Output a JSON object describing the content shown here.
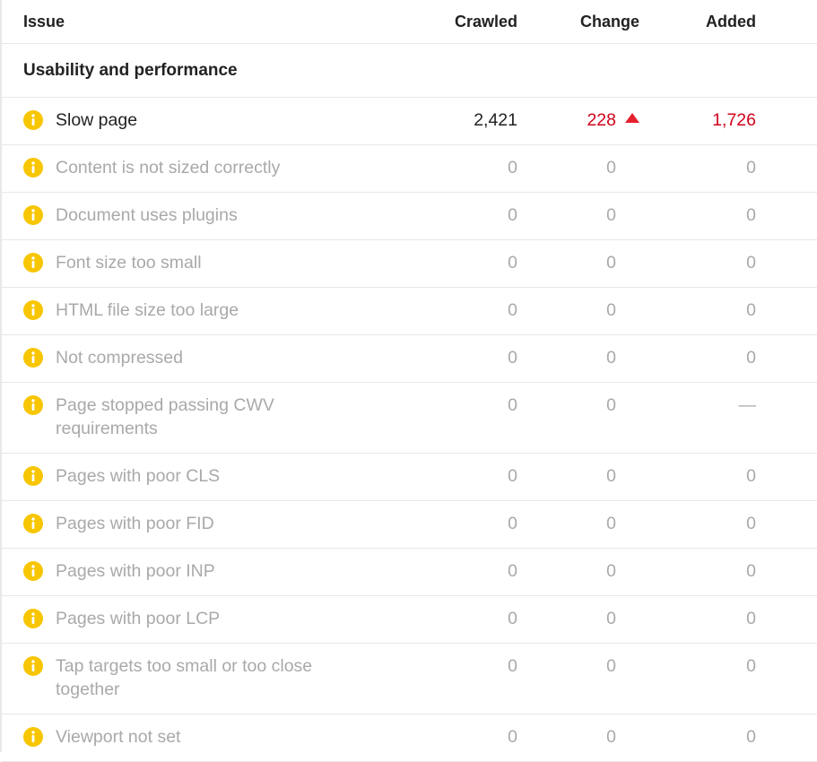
{
  "table": {
    "columns": [
      "Issue",
      "Crawled",
      "Change",
      "Added"
    ],
    "section": "Usability and performance",
    "rows": [
      [
        "Slow page",
        "2,421",
        "228",
        "1,726"
      ],
      [
        "Content is not sized correctly",
        "0",
        "0",
        "0"
      ],
      [
        "Document uses plugins",
        "0",
        "0",
        "0"
      ],
      [
        "Font size too small",
        "0",
        "0",
        "0"
      ],
      [
        "HTML file size too large",
        "0",
        "0",
        "0"
      ],
      [
        "Not compressed",
        "0",
        "0",
        "0"
      ],
      [
        "Page stopped passing CWV requirements",
        "0",
        "0",
        "—"
      ],
      [
        "Pages with poor CLS",
        "0",
        "0",
        "0"
      ],
      [
        "Pages with poor FID",
        "0",
        "0",
        "0"
      ],
      [
        "Pages with poor INP",
        "0",
        "0",
        "0"
      ],
      [
        "Pages with poor LCP",
        "0",
        "0",
        "0"
      ],
      [
        "Tap targets too small or too close together",
        "0",
        "0",
        "0"
      ],
      [
        "Viewport not set",
        "0",
        "0",
        "0"
      ]
    ]
  }
}
